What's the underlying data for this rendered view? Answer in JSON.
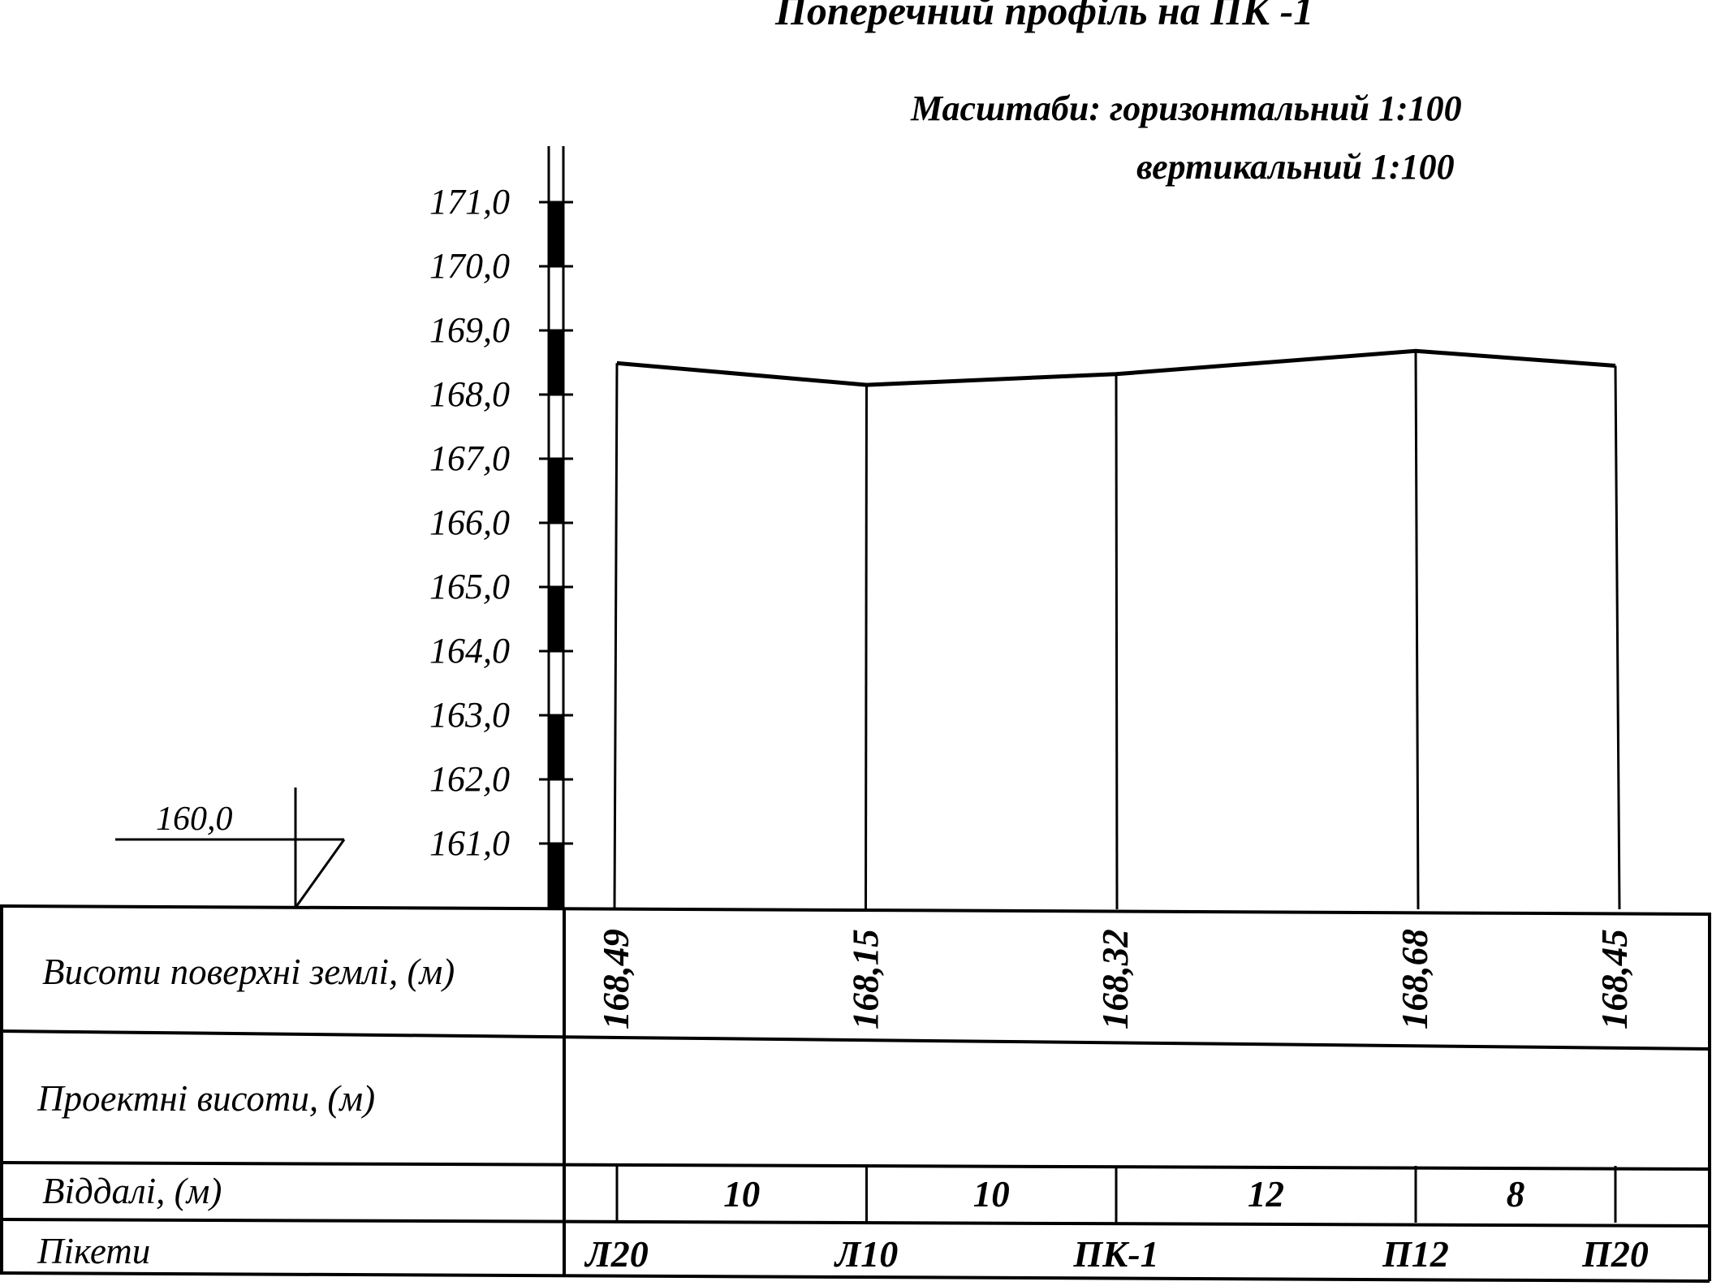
{
  "title": "Поперечний  профіль на ПК -1",
  "scales": {
    "line1": "Масштаби: горизонтальний 1:100",
    "line2": "вертикальний 1:100"
  },
  "datum": "160,0",
  "row_labels": {
    "ground": "Висоти поверхні землі, (м)",
    "design": "Проектні висоти, (м)",
    "distances": "Віддалі, (м)",
    "pickets": "Пікети"
  },
  "colors": {
    "ink": "#000000",
    "background": "#ffffff"
  },
  "chart_data": {
    "type": "line",
    "ytick_labels": [
      "161,0",
      "162,0",
      "163,0",
      "164,0",
      "165,0",
      "166,0",
      "167,0",
      "168,0",
      "169,0",
      "170,0",
      "171,0"
    ],
    "ylim": [
      160,
      171
    ],
    "x": [
      0,
      10,
      20,
      32,
      40
    ],
    "elevations": [
      168.49,
      168.15,
      168.32,
      168.68,
      168.45
    ],
    "elevation_labels": [
      "168,49",
      "168,15",
      "168,32",
      "168,68",
      "168,45"
    ],
    "distances": [
      "10",
      "10",
      "12",
      "8"
    ],
    "pickets": [
      "Л20",
      "Л10",
      "ПК-1",
      "П12",
      "П20"
    ]
  }
}
